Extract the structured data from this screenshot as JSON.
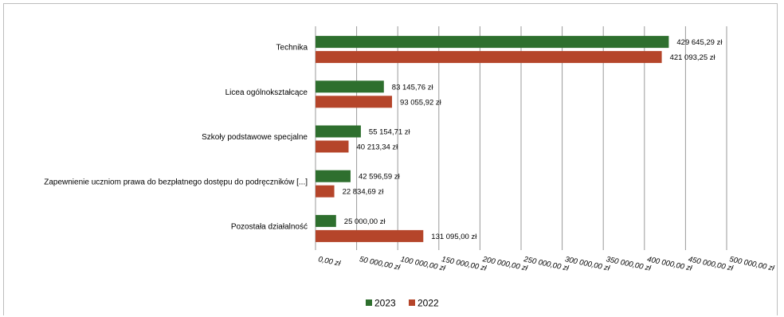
{
  "chart_data": {
    "type": "bar",
    "orientation": "horizontal",
    "categories": [
      "Technika",
      "Licea ogólnokształcące",
      "Szkoły podstawowe specjalne",
      "Zapewnienie uczniom prawa do bezpłatnego dostępu do podręczników [...]",
      "Pozostała działalność"
    ],
    "series": [
      {
        "name": "2023",
        "color": "#2e6f2e",
        "values": [
          429645.29,
          83145.76,
          55154.71,
          42596.59,
          25000.0
        ],
        "labels": [
          "429 645,29 zł",
          "83 145,76 zł",
          "55 154,71 zł",
          "42 596,59 zł",
          "25 000,00 zł"
        ]
      },
      {
        "name": "2022",
        "color": "#b5452a",
        "values": [
          421093.25,
          93055.92,
          40213.34,
          22834.69,
          131095.0
        ],
        "labels": [
          "421 093,25 zł",
          "93 055,92 zł",
          "40 213,34 zł",
          "22 834,69 zł",
          "131 095,00 zł"
        ]
      }
    ],
    "xlim": [
      0,
      500000
    ],
    "xticks": [
      0,
      50000,
      100000,
      150000,
      200000,
      250000,
      300000,
      350000,
      400000,
      450000,
      500000
    ],
    "xtick_labels": [
      "0,00 zł",
      "50 000,00 zł",
      "100 000,00 zł",
      "150 000,00 zł",
      "200 000,00 zł",
      "250 000,00 zł",
      "300 000,00 zł",
      "350 000,00 zł",
      "400 000,00 zł",
      "450 000,00 zł",
      "500 000,00 zł"
    ],
    "grid": true,
    "legend_position": "bottom-center",
    "title": "",
    "xlabel": "",
    "ylabel": ""
  }
}
